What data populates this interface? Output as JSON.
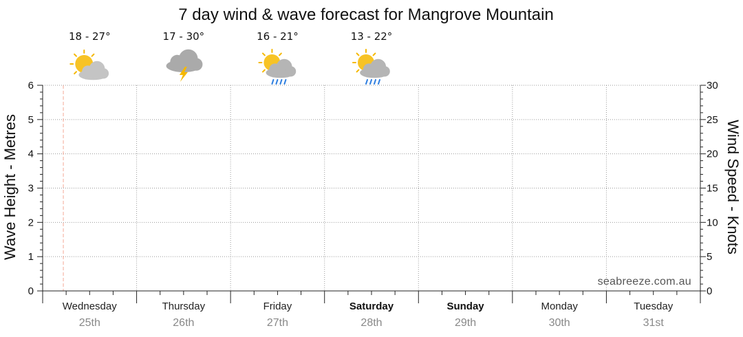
{
  "chart_data": {
    "type": "line",
    "title": "7 day wind & wave forecast for Mangrove Mountain",
    "ylabel_left": "Wave Height - Metres",
    "ylabel_right": "Wind Speed - Knots",
    "ylim_left": [
      0,
      6
    ],
    "ylim_right": [
      0,
      30
    ],
    "yticks_left": [
      "0",
      "1",
      "2",
      "3",
      "4",
      "5",
      "6"
    ],
    "yticks_right": [
      "0",
      "5",
      "10",
      "15",
      "20",
      "25",
      "30"
    ],
    "grid": true,
    "categories": [
      {
        "day": "Wednesday",
        "date": "25th",
        "weekend": false
      },
      {
        "day": "Thursday",
        "date": "26th",
        "weekend": false
      },
      {
        "day": "Friday",
        "date": "27th",
        "weekend": false
      },
      {
        "day": "Saturday",
        "date": "28th",
        "weekend": true
      },
      {
        "day": "Sunday",
        "date": "29th",
        "weekend": true
      },
      {
        "day": "Monday",
        "date": "30th",
        "weekend": false
      },
      {
        "day": "Tuesday",
        "date": "31st",
        "weekend": false
      }
    ],
    "forecasts": [
      {
        "temp": "18 - 27°",
        "icon": "partly-cloudy-icon"
      },
      {
        "temp": "17 - 30°",
        "icon": "thunderstorm-icon"
      },
      {
        "temp": "16 - 21°",
        "icon": "partly-cloudy-rain-icon"
      },
      {
        "temp": "13 - 22°",
        "icon": "partly-cloudy-rain-icon"
      }
    ],
    "series": [],
    "current_time_marker": {
      "day_index": 0,
      "fraction_of_day": 0.22,
      "color": "#f4a896"
    },
    "watermark": "seabreeze.com.au"
  }
}
